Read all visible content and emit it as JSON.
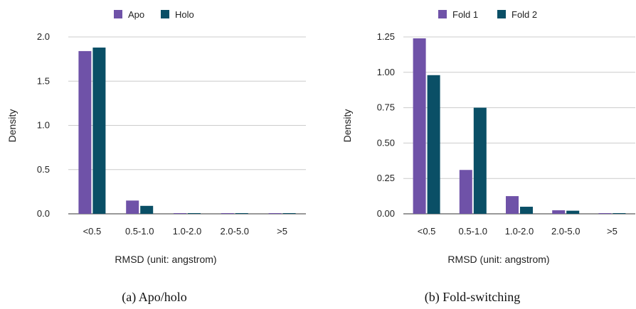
{
  "colors": {
    "series1": "#6f52a8",
    "series2": "#0a4f66",
    "grid": "#cccccc",
    "axis": "#333333"
  },
  "chart_data": [
    {
      "type": "bar",
      "categories": [
        "<0.5",
        "0.5-1.0",
        "1.0-2.0",
        "2.0-5.0",
        ">5"
      ],
      "series": [
        {
          "name": "Apo",
          "values": [
            1.84,
            0.15,
            0.005,
            0.004,
            0.004
          ]
        },
        {
          "name": "Holo",
          "values": [
            1.88,
            0.09,
            0.006,
            0.005,
            0.005
          ]
        }
      ],
      "xlabel": "RMSD (unit: angstrom)",
      "ylabel": "Density",
      "ylim": [
        0,
        2.0
      ],
      "yticks": [
        "0.0",
        "0.5",
        "1.0",
        "1.5",
        "2.0"
      ],
      "grid": true,
      "legend": "top-center",
      "caption": "(a) Apo/holo"
    },
    {
      "type": "bar",
      "categories": [
        "<0.5",
        "0.5-1.0",
        "1.0-2.0",
        "2.0-5.0",
        ">5"
      ],
      "series": [
        {
          "name": "Fold 1",
          "values": [
            1.24,
            0.31,
            0.125,
            0.025,
            0.005
          ]
        },
        {
          "name": "Fold 2",
          "values": [
            0.98,
            0.75,
            0.05,
            0.022,
            0.005
          ]
        }
      ],
      "xlabel": "RMSD (unit: angstrom)",
      "ylabel": "Density",
      "ylim": [
        0,
        1.25
      ],
      "yticks": [
        "0.00",
        "0.25",
        "0.50",
        "0.75",
        "1.00",
        "1.25"
      ],
      "grid": true,
      "legend": "top-center",
      "caption": "(b) Fold-switching"
    }
  ]
}
